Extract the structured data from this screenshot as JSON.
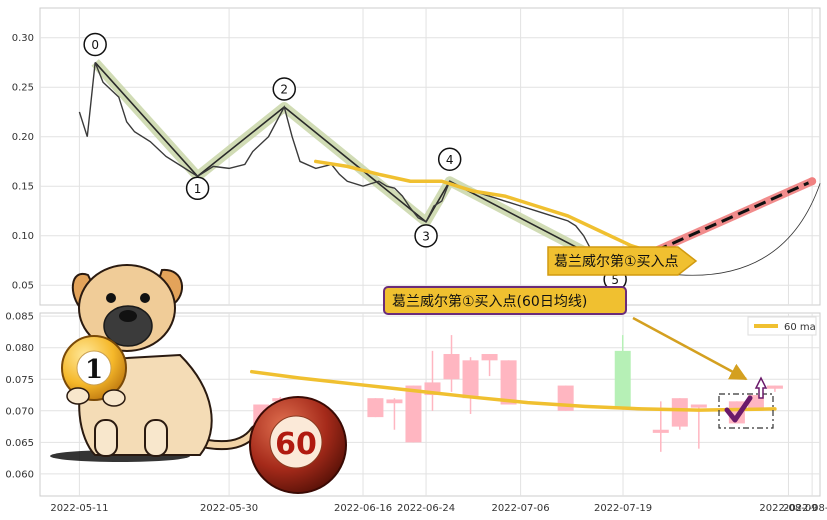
{
  "chart_data": [
    {
      "type": "line",
      "title": "",
      "xlabel": "",
      "ylabel": "",
      "y_ticks": [
        "0.30",
        "0.25",
        "0.20",
        "0.15",
        "0.10",
        "0.05"
      ],
      "ylim": [
        0.03,
        0.33
      ],
      "xlim": [
        "2022-05-06",
        "2022-08-13"
      ],
      "grid": true,
      "series": [
        {
          "role": "price",
          "color": "#3a3a3a",
          "points": [
            [
              "2022-05-11",
              0.225
            ],
            [
              "2022-05-12",
              0.2
            ],
            [
              "2022-05-13",
              0.275
            ],
            [
              "2022-05-14",
              0.255
            ],
            [
              "2022-05-16",
              0.24
            ],
            [
              "2022-05-17",
              0.215
            ],
            [
              "2022-05-18",
              0.205
            ],
            [
              "2022-05-20",
              0.195
            ],
            [
              "2022-05-22",
              0.18
            ],
            [
              "2022-05-24",
              0.17
            ],
            [
              "2022-05-25",
              0.165
            ],
            [
              "2022-05-26",
              0.16
            ],
            [
              "2022-05-28",
              0.17
            ],
            [
              "2022-05-30",
              0.168
            ],
            [
              "2022-06-01",
              0.172
            ],
            [
              "2022-06-02",
              0.185
            ],
            [
              "2022-06-04",
              0.2
            ],
            [
              "2022-06-06",
              0.23
            ],
            [
              "2022-06-07",
              0.2
            ],
            [
              "2022-06-08",
              0.175
            ],
            [
              "2022-06-10",
              0.168
            ],
            [
              "2022-06-12",
              0.172
            ],
            [
              "2022-06-13",
              0.162
            ],
            [
              "2022-06-14",
              0.155
            ],
            [
              "2022-06-16",
              0.15
            ],
            [
              "2022-06-18",
              0.155
            ],
            [
              "2022-06-19",
              0.15
            ],
            [
              "2022-06-20",
              0.148
            ],
            [
              "2022-06-21",
              0.14
            ],
            [
              "2022-06-22",
              0.128
            ],
            [
              "2022-06-23",
              0.118
            ],
            [
              "2022-06-24",
              0.114
            ],
            [
              "2022-06-25",
              0.13
            ],
            [
              "2022-06-26",
              0.135
            ],
            [
              "2022-06-27",
              0.155
            ],
            [
              "2022-06-28",
              0.15
            ],
            [
              "2022-06-30",
              0.145
            ],
            [
              "2022-07-02",
              0.14
            ],
            [
              "2022-07-04",
              0.135
            ],
            [
              "2022-07-06",
              0.13
            ],
            [
              "2022-07-08",
              0.125
            ],
            [
              "2022-07-10",
              0.12
            ],
            [
              "2022-07-12",
              0.115
            ],
            [
              "2022-07-13",
              0.11
            ],
            [
              "2022-07-14",
              0.1
            ],
            [
              "2022-07-15",
              0.085
            ],
            [
              "2022-07-16",
              0.075
            ],
            [
              "2022-07-17",
              0.07
            ],
            [
              "2022-07-18",
              0.068
            ],
            [
              "2022-07-19",
              0.072
            ],
            [
              "2022-07-20",
              0.075
            ],
            [
              "2022-07-21",
              0.072
            ],
            [
              "2022-07-22",
              0.074
            ]
          ]
        },
        {
          "role": "60-day moving average",
          "color": "#f0c030",
          "points": [
            [
              "2022-06-10",
              0.175
            ],
            [
              "2022-06-14",
              0.17
            ],
            [
              "2022-06-18",
              0.162
            ],
            [
              "2022-06-22",
              0.155
            ],
            [
              "2022-06-26",
              0.155
            ],
            [
              "2022-06-30",
              0.145
            ],
            [
              "2022-07-04",
              0.14
            ],
            [
              "2022-07-08",
              0.13
            ],
            [
              "2022-07-12",
              0.12
            ],
            [
              "2022-07-16",
              0.105
            ],
            [
              "2022-07-20",
              0.09
            ],
            [
              "2022-07-24",
              0.08
            ],
            [
              "2022-07-27",
              0.075
            ]
          ]
        }
      ],
      "waves": [
        {
          "label": "0",
          "x": "2022-05-13",
          "y": 0.275
        },
        {
          "label": "1",
          "x": "2022-05-26",
          "y": 0.16
        },
        {
          "label": "2",
          "x": "2022-06-06",
          "y": 0.23
        },
        {
          "label": "3",
          "x": "2022-06-24",
          "y": 0.114
        },
        {
          "label": "4",
          "x": "2022-06-27",
          "y": 0.155
        },
        {
          "label": "5",
          "x": "2022-07-18",
          "y": 0.068
        }
      ],
      "projection": {
        "from": [
          "2022-07-19",
          0.07
        ],
        "to": [
          "2022-08-12",
          0.155
        ]
      },
      "annotation": "葛兰威尔第①买入点",
      "annotation_point": [
        "2022-07-20",
        0.06
      ]
    },
    {
      "type": "candlestick",
      "title": "",
      "xlabel": "",
      "ylabel": "",
      "x_ticks": [
        "2022-05-11",
        "2022-05-30",
        "2022-06-16",
        "2022-06-24",
        "2022-07-06",
        "2022-07-19",
        "2022-08-09",
        "2022-08-12"
      ],
      "y_ticks": [
        "0.085",
        "0.080",
        "0.075",
        "0.070",
        "0.065",
        "0.060"
      ],
      "ylim": [
        0.0565,
        0.0855
      ],
      "grid": true,
      "legend": {
        "label": "60 ma",
        "placement": "top-right"
      },
      "candles": [
        {
          "slot": 12,
          "open": 0.071,
          "close": 0.0665,
          "high": 0.071,
          "low": 0.0665,
          "up": false
        },
        {
          "slot": 13,
          "open": 0.072,
          "close": 0.0715,
          "high": 0.0722,
          "low": 0.0712,
          "up": false
        },
        {
          "slot": 14,
          "open": 0.072,
          "close": 0.0705,
          "high": 0.072,
          "low": 0.0665,
          "up": false
        },
        {
          "slot": 18,
          "open": 0.072,
          "close": 0.069,
          "high": 0.072,
          "low": 0.069,
          "up": false
        },
        {
          "slot": 19,
          "open": 0.0718,
          "close": 0.0712,
          "high": 0.072,
          "low": 0.067,
          "up": false
        },
        {
          "slot": 20,
          "open": 0.074,
          "close": 0.065,
          "high": 0.074,
          "low": 0.065,
          "up": false
        },
        {
          "slot": 21,
          "open": 0.0745,
          "close": 0.0725,
          "high": 0.0795,
          "low": 0.07,
          "up": false
        },
        {
          "slot": 22,
          "open": 0.079,
          "close": 0.075,
          "high": 0.082,
          "low": 0.073,
          "up": false
        },
        {
          "slot": 23,
          "open": 0.078,
          "close": 0.072,
          "high": 0.0785,
          "low": 0.0695,
          "up": false
        },
        {
          "slot": 24,
          "open": 0.079,
          "close": 0.078,
          "high": 0.079,
          "low": 0.0755,
          "up": false
        },
        {
          "slot": 25,
          "open": 0.078,
          "close": 0.071,
          "high": 0.078,
          "low": 0.071,
          "up": false
        },
        {
          "slot": 28,
          "open": 0.074,
          "close": 0.07,
          "high": 0.074,
          "low": 0.07,
          "up": false
        },
        {
          "slot": 31,
          "open": 0.0705,
          "close": 0.0795,
          "high": 0.082,
          "low": 0.0705,
          "up": true
        },
        {
          "slot": 33,
          "open": 0.067,
          "close": 0.0665,
          "high": 0.0715,
          "low": 0.0635,
          "up": false
        },
        {
          "slot": 34,
          "open": 0.072,
          "close": 0.0675,
          "high": 0.072,
          "low": 0.067,
          "up": false
        },
        {
          "slot": 35,
          "open": 0.071,
          "close": 0.0705,
          "high": 0.071,
          "low": 0.064,
          "up": false
        },
        {
          "slot": 37,
          "open": 0.0715,
          "close": 0.068,
          "high": 0.0715,
          "low": 0.068,
          "up": false
        },
        {
          "slot": 38,
          "open": 0.0725,
          "close": 0.07,
          "high": 0.0725,
          "low": 0.07,
          "up": false
        },
        {
          "slot": 39,
          "open": 0.074,
          "close": 0.0735,
          "high": 0.074,
          "low": 0.073,
          "up": false
        }
      ],
      "ma60": {
        "color": "#f0c030",
        "points": [
          [
            11.5,
            0.0762
          ],
          [
            14,
            0.0752
          ],
          [
            17,
            0.0742
          ],
          [
            20,
            0.0732
          ],
          [
            23,
            0.0722
          ],
          [
            26,
            0.0713
          ],
          [
            29,
            0.0707
          ],
          [
            32,
            0.0703
          ],
          [
            35,
            0.0701
          ],
          [
            39,
            0.0703
          ]
        ]
      },
      "annotation": "葛兰威尔第①买入点(60日均线)"
    }
  ],
  "colors": {
    "up_candle": "#b6f0b6",
    "down_candle": "#ffb6c1",
    "ma": "#f0c030",
    "projection": "#f08080",
    "banner_fill": "#f0c030",
    "banner_border": "#6a2c7a",
    "wave_band": "#c9d6a8"
  },
  "decor": {
    "dog": "cartoon-puppy-holding-ball",
    "ball_1_text": "1",
    "ball_60_text": "60"
  }
}
